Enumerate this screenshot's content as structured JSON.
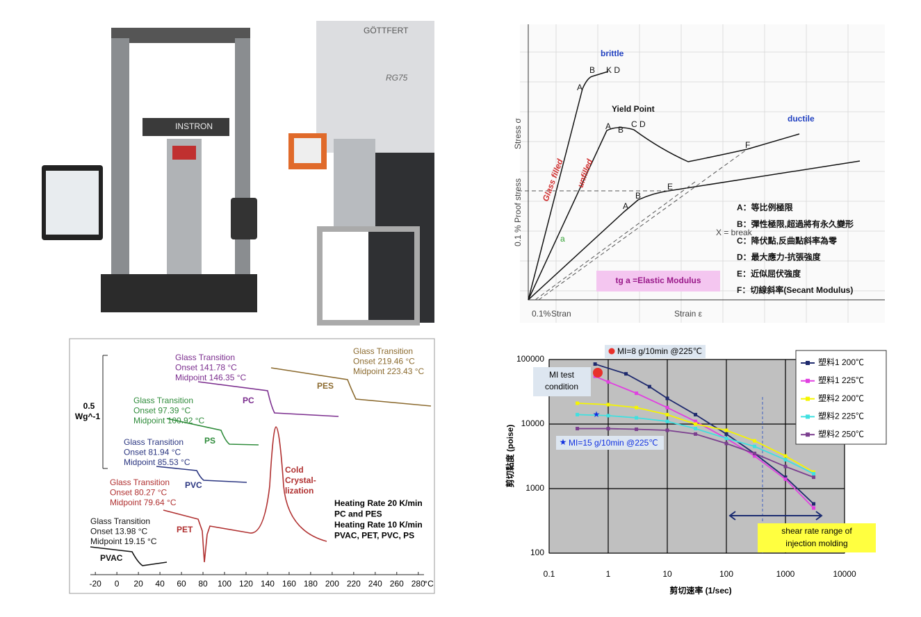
{
  "photo": {
    "labels": [
      "GÖTTFERT",
      "RG75",
      "INSTRON"
    ]
  },
  "diagram": {
    "labels": [
      "brittle",
      "Yield Point",
      "ductile",
      "Glass filled",
      "unfilled",
      "a"
    ],
    "modulus": "tg a =Elastic Modulus",
    "legend": [
      "A：等比例極限",
      "B：彈性極限,超過將有永久變形",
      "C：降伏點,反曲點斜率為零",
      "D：最大應力-抗張強度",
      "E：近似屈伏強度",
      "F：切線斜率(Secant Modulus)"
    ],
    "axis_labels": [
      "Stress σ",
      "0.1 % Proof stress",
      "Strain ε",
      "0.1%",
      "Stran",
      "X = break"
    ],
    "points": [
      "A",
      "B",
      "K D",
      "A",
      "B",
      "C D",
      "F",
      "A",
      "B",
      "E"
    ]
  },
  "chart_data": [
    {
      "type": "line",
      "xlim": [
        -44,
        295
      ],
      "xticks": [
        -20,
        0,
        20,
        40,
        60,
        80,
        100,
        120,
        140,
        160,
        180,
        200,
        220,
        240,
        260,
        280
      ],
      "xlabel": "°C",
      "scale_label": [
        "0.5",
        "Wg^-1"
      ],
      "samples": [
        {
          "name": "PC",
          "color": "#7b2d8e",
          "transition": [
            "Glass Transition",
            "Onset    141.78 °C",
            "Midpoint 146.35 °C"
          ]
        },
        {
          "name": "PES",
          "color": "#8b6a2e",
          "transition": [
            "Glass Transition",
            "Onset    219.46 °C",
            "Midpoint 223.43 °C"
          ]
        },
        {
          "name": "PS",
          "color": "#2e8b3a",
          "transition": [
            "Glass Transition",
            "Onset    97.39 °C",
            "Midpoint 100.92 °C"
          ]
        },
        {
          "name": "PVC",
          "color": "#2a3580",
          "transition": [
            "Glass Transition",
            "Onset    81.94 °C",
            "Midpoint 85.53 °C"
          ]
        },
        {
          "name": "PET",
          "color": "#b03030",
          "transition": [
            "Glass Transition",
            "Onset    80.27 °C",
            "Midpoint 79.64 °C"
          ]
        },
        {
          "name": "PVAC",
          "color": "#111111",
          "transition": [
            "Glass Transition",
            "Onset    13.98 °C",
            "Midpoint 19.15 °C"
          ]
        }
      ],
      "peak_label": [
        "Cold",
        "Crystal-",
        "lization"
      ],
      "notes": [
        "Heating Rate 20 K/min",
        "PC and PES",
        "Heating Rate 10 K/min",
        "PVAC, PET, PVC, PS"
      ]
    },
    {
      "type": "line",
      "log_scale": true,
      "grid": true,
      "xlabel": "剪切速率 (1/sec)",
      "ylabel": "剪切黏度 (poise)",
      "xlim": [
        0.1,
        10000
      ],
      "ylim": [
        100,
        100000
      ],
      "xticks": [
        0.1,
        1,
        10,
        100,
        1000,
        10000
      ],
      "yticks": [
        100,
        1000,
        10000,
        100000
      ],
      "series": [
        {
          "name": "塑料1 200℃",
          "color": "#1f2a6e",
          "x": [
            0.6,
            2,
            5,
            10,
            30,
            100,
            300,
            1000,
            3000
          ],
          "values": [
            85000,
            60000,
            38000,
            25000,
            14000,
            7000,
            3500,
            1500,
            580
          ]
        },
        {
          "name": "塑料1 225℃",
          "color": "#e040e0",
          "x": [
            0.6,
            1,
            3,
            10,
            30,
            100,
            300,
            1000,
            3000
          ],
          "values": [
            55000,
            45000,
            30000,
            18000,
            11000,
            6000,
            3200,
            1400,
            500
          ]
        },
        {
          "name": "塑料2 200℃",
          "color": "#f5f500",
          "x": [
            0.3,
            1,
            3,
            10,
            30,
            100,
            300,
            1000,
            3000
          ],
          "values": [
            21000,
            20000,
            18000,
            14000,
            10000,
            8000,
            5500,
            3200,
            1800
          ]
        },
        {
          "name": "塑料2 225℃",
          "color": "#40e0e0",
          "x": [
            0.3,
            1,
            3,
            10,
            30,
            100,
            300,
            1000,
            3000
          ],
          "values": [
            14000,
            13500,
            12500,
            11000,
            8500,
            6000,
            4500,
            2800,
            1700
          ]
        },
        {
          "name": "塑料2 250℃",
          "color": "#7b3f8f",
          "x": [
            0.3,
            1,
            3,
            10,
            30,
            100,
            300,
            1000,
            3000
          ],
          "values": [
            8500,
            8500,
            8300,
            8000,
            7000,
            5000,
            3500,
            2200,
            1500
          ]
        }
      ],
      "annotations": {
        "mi_test": [
          "MI test",
          "condition"
        ],
        "mi8": "MI=8 g/10min @225℃",
        "mi15": "MI=15 g/10min @225℃",
        "shear_range": [
          "shear rate range of",
          "injection molding"
        ]
      }
    }
  ]
}
